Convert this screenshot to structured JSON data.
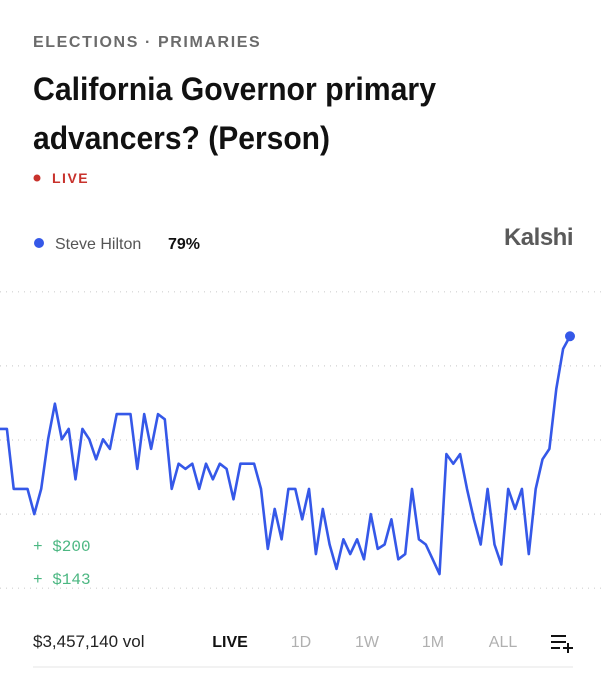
{
  "breadcrumb": "ELECTIONS · PRIMARIES",
  "title_lines": [
    "California Governor primary",
    "advancers? (Person)"
  ],
  "status": "LIVE",
  "brand": "Kalshi",
  "money_labels": [
    "+ $200",
    "+ $143"
  ],
  "volume": "$3,457,140 vol",
  "tabs": [
    "LIVE",
    "1D",
    "1W",
    "1M",
    "ALL"
  ],
  "chart_data": {
    "type": "line",
    "series": [
      {
        "name": "Steve Hilton",
        "color": "#3558e8",
        "current_label": "79%",
        "values": [
          66.5,
          66.5,
          58.4,
          58.4,
          58.4,
          55.0,
          58.4,
          65.1,
          69.9,
          65.1,
          66.5,
          59.7,
          66.5,
          65.1,
          62.4,
          65.1,
          63.8,
          68.5,
          68.5,
          68.5,
          61.1,
          68.5,
          63.8,
          68.5,
          67.8,
          58.4,
          61.8,
          61.1,
          61.8,
          58.4,
          61.8,
          59.7,
          61.8,
          61.1,
          57.0,
          61.8,
          61.8,
          61.8,
          58.4,
          50.3,
          55.7,
          51.6,
          58.4,
          58.4,
          54.3,
          58.4,
          49.6,
          55.7,
          50.9,
          47.6,
          51.6,
          49.6,
          51.6,
          48.9,
          55.0,
          50.3,
          50.9,
          54.3,
          48.9,
          49.6,
          58.4,
          51.6,
          50.9,
          48.9,
          46.9,
          63.1,
          61.8,
          63.1,
          58.4,
          54.3,
          50.9,
          58.4,
          50.9,
          48.2,
          58.4,
          55.7,
          58.4,
          49.6,
          58.4,
          62.4,
          63.8,
          71.9,
          77.3,
          79
        ]
      }
    ],
    "ylim": [
      43,
      87
    ],
    "yticks": [
      45,
      55,
      65,
      75,
      85
    ],
    "grid": true
  }
}
